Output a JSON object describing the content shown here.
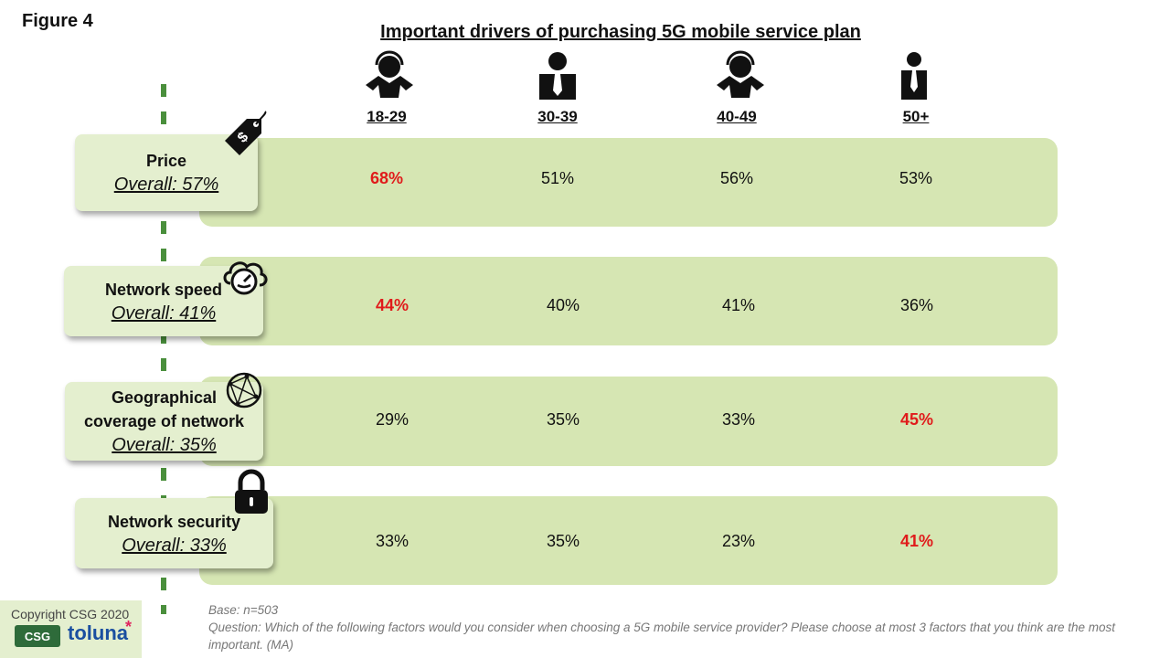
{
  "figure_label": "Figure 4",
  "chart_data": {
    "type": "table",
    "title": "Important drivers of purchasing 5G mobile service plan",
    "columns": [
      "18-29",
      "30-39",
      "40-49",
      "50+"
    ],
    "rows": [
      {
        "factor": "Price",
        "overall": "Overall: 57%",
        "values": [
          "68%",
          "51%",
          "56%",
          "53%"
        ],
        "highlight": [
          true,
          false,
          false,
          false
        ],
        "icon": "price-tag-icon"
      },
      {
        "factor": "Network speed",
        "overall": "Overall: 41%",
        "values": [
          "44%",
          "40%",
          "41%",
          "36%"
        ],
        "highlight": [
          true,
          false,
          false,
          false
        ],
        "icon": "speedometer-cloud-icon"
      },
      {
        "factor_lines": [
          "Geographical",
          "coverage of network"
        ],
        "overall": "Overall: 35%",
        "values": [
          "29%",
          "35%",
          "33%",
          "45%"
        ],
        "highlight": [
          false,
          false,
          false,
          true
        ],
        "icon": "globe-network-icon"
      },
      {
        "factor": "Network security",
        "overall": "Overall: 33%",
        "values": [
          "33%",
          "35%",
          "23%",
          "41%"
        ],
        "highlight": [
          false,
          false,
          false,
          true
        ],
        "icon": "padlock-icon"
      }
    ],
    "column_icons": [
      "person-headset-icon",
      "person-tie-icon",
      "person-headset-icon",
      "person-tie-icon"
    ]
  },
  "footnote": {
    "base": "Base: n=503",
    "question": "Question: Which of the following factors would you consider when choosing a 5G mobile service provider? Please choose at most 3 factors that you think are the most important. (MA)"
  },
  "copyright": "Copyright CSG 2020",
  "logos": {
    "csg": "CSG",
    "toluna": "toluna",
    "toluna_star": "*"
  },
  "colors": {
    "band": "#d6e6b3",
    "card": "#e4efcf",
    "highlight": "#e01b1b",
    "dash": "#4a8f3c",
    "toluna": "#1a4fa0"
  }
}
